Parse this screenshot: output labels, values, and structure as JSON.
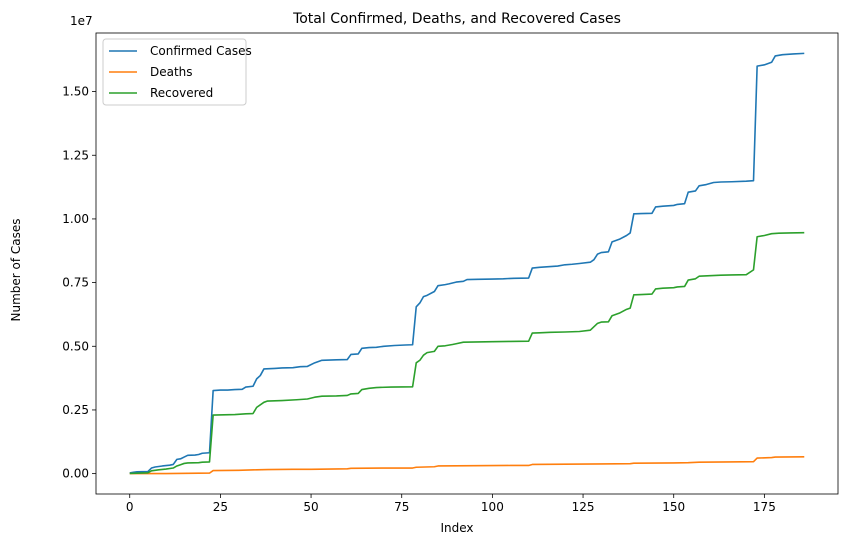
{
  "chart_data": {
    "type": "line",
    "title": "Total Confirmed, Deaths, and Recovered Cases",
    "xlabel": "Index",
    "ylabel": "Number of Cases",
    "y_offset_label": "1e7",
    "xlim": [
      -9.3,
      195.3
    ],
    "ylim": [
      -0.08,
      1.73
    ],
    "y_scale_note": "values in units of 1e7",
    "xticks": [
      0,
      25,
      50,
      75,
      100,
      125,
      150,
      175
    ],
    "yticks": [
      0.0,
      0.25,
      0.5,
      0.75,
      1.0,
      1.25,
      1.5
    ],
    "ytick_labels": [
      "0.00",
      "0.25",
      "0.50",
      "0.75",
      "1.00",
      "1.25",
      "1.50"
    ],
    "legend_position": "upper-left",
    "grid": false,
    "series": [
      {
        "name": "Confirmed Cases",
        "color": "#1f77b4",
        "points": [
          [
            0,
            0.0027
          ],
          [
            1,
            0.005
          ],
          [
            2,
            0.007
          ],
          [
            5,
            0.008
          ],
          [
            6,
            0.022
          ],
          [
            7,
            0.026
          ],
          [
            9,
            0.03
          ],
          [
            11,
            0.033
          ],
          [
            12,
            0.036
          ],
          [
            13,
            0.056
          ],
          [
            14,
            0.058
          ],
          [
            15,
            0.065
          ],
          [
            16,
            0.072
          ],
          [
            18,
            0.073
          ],
          [
            19,
            0.075
          ],
          [
            20,
            0.08
          ],
          [
            22,
            0.082
          ],
          [
            23,
            0.326
          ],
          [
            25,
            0.328
          ],
          [
            27,
            0.328
          ],
          [
            29,
            0.33
          ],
          [
            31,
            0.331
          ],
          [
            32,
            0.34
          ],
          [
            34,
            0.343
          ],
          [
            35,
            0.372
          ],
          [
            36,
            0.385
          ],
          [
            37,
            0.411
          ],
          [
            40,
            0.413
          ],
          [
            42,
            0.415
          ],
          [
            45,
            0.416
          ],
          [
            47,
            0.42
          ],
          [
            49,
            0.421
          ],
          [
            51,
            0.435
          ],
          [
            53,
            0.445
          ],
          [
            57,
            0.447
          ],
          [
            60,
            0.448
          ],
          [
            61,
            0.468
          ],
          [
            63,
            0.47
          ],
          [
            64,
            0.492
          ],
          [
            66,
            0.495
          ],
          [
            68,
            0.496
          ],
          [
            70,
            0.5
          ],
          [
            73,
            0.503
          ],
          [
            76,
            0.505
          ],
          [
            78,
            0.506
          ],
          [
            79,
            0.655
          ],
          [
            80,
            0.67
          ],
          [
            81,
            0.695
          ],
          [
            82,
            0.7
          ],
          [
            84,
            0.715
          ],
          [
            85,
            0.738
          ],
          [
            87,
            0.742
          ],
          [
            88,
            0.745
          ],
          [
            90,
            0.752
          ],
          [
            92,
            0.755
          ],
          [
            93,
            0.762
          ],
          [
            96,
            0.763
          ],
          [
            100,
            0.764
          ],
          [
            103,
            0.765
          ],
          [
            106,
            0.767
          ],
          [
            110,
            0.768
          ],
          [
            111,
            0.807
          ],
          [
            113,
            0.81
          ],
          [
            115,
            0.812
          ],
          [
            118,
            0.815
          ],
          [
            120,
            0.82
          ],
          [
            122,
            0.822
          ],
          [
            124,
            0.825
          ],
          [
            127,
            0.83
          ],
          [
            128,
            0.84
          ],
          [
            129,
            0.862
          ],
          [
            130,
            0.868
          ],
          [
            132,
            0.871
          ],
          [
            133,
            0.91
          ],
          [
            135,
            0.92
          ],
          [
            137,
            0.935
          ],
          [
            138,
            0.945
          ],
          [
            139,
            1.02
          ],
          [
            141,
            1.021
          ],
          [
            144,
            1.022
          ],
          [
            145,
            1.047
          ],
          [
            147,
            1.05
          ],
          [
            150,
            1.053
          ],
          [
            151,
            1.057
          ],
          [
            153,
            1.06
          ],
          [
            154,
            1.105
          ],
          [
            156,
            1.11
          ],
          [
            157,
            1.13
          ],
          [
            159,
            1.135
          ],
          [
            161,
            1.143
          ],
          [
            163,
            1.145
          ],
          [
            166,
            1.146
          ],
          [
            170,
            1.148
          ],
          [
            172,
            1.15
          ],
          [
            173,
            1.6
          ],
          [
            175,
            1.605
          ],
          [
            177,
            1.615
          ],
          [
            178,
            1.64
          ],
          [
            180,
            1.645
          ],
          [
            183,
            1.648
          ],
          [
            186,
            1.65
          ]
        ]
      },
      {
        "name": "Deaths",
        "color": "#ff7f0e",
        "points": [
          [
            0,
            0.0001
          ],
          [
            10,
            0.0003
          ],
          [
            22,
            0.002
          ],
          [
            23,
            0.012
          ],
          [
            30,
            0.013
          ],
          [
            35,
            0.015
          ],
          [
            38,
            0.016
          ],
          [
            45,
            0.017
          ],
          [
            50,
            0.017
          ],
          [
            55,
            0.018
          ],
          [
            60,
            0.019
          ],
          [
            61,
            0.021
          ],
          [
            70,
            0.022
          ],
          [
            78,
            0.022
          ],
          [
            79,
            0.025
          ],
          [
            84,
            0.027
          ],
          [
            85,
            0.03
          ],
          [
            95,
            0.031
          ],
          [
            105,
            0.032
          ],
          [
            110,
            0.032
          ],
          [
            111,
            0.036
          ],
          [
            120,
            0.037
          ],
          [
            130,
            0.038
          ],
          [
            138,
            0.039
          ],
          [
            139,
            0.041
          ],
          [
            150,
            0.042
          ],
          [
            154,
            0.043
          ],
          [
            157,
            0.045
          ],
          [
            165,
            0.046
          ],
          [
            172,
            0.047
          ],
          [
            173,
            0.061
          ],
          [
            177,
            0.063
          ],
          [
            178,
            0.065
          ],
          [
            186,
            0.066
          ]
        ]
      },
      {
        "name": "Recovered",
        "color": "#2ca02c",
        "points": [
          [
            0,
            0.0008
          ],
          [
            5,
            0.003
          ],
          [
            6,
            0.011
          ],
          [
            8,
            0.015
          ],
          [
            10,
            0.018
          ],
          [
            12,
            0.022
          ],
          [
            13,
            0.03
          ],
          [
            14,
            0.035
          ],
          [
            15,
            0.04
          ],
          [
            16,
            0.042
          ],
          [
            19,
            0.043
          ],
          [
            20,
            0.045
          ],
          [
            22,
            0.046
          ],
          [
            23,
            0.23
          ],
          [
            26,
            0.231
          ],
          [
            29,
            0.232
          ],
          [
            32,
            0.235
          ],
          [
            34,
            0.236
          ],
          [
            35,
            0.26
          ],
          [
            37,
            0.28
          ],
          [
            38,
            0.285
          ],
          [
            42,
            0.287
          ],
          [
            46,
            0.29
          ],
          [
            49,
            0.293
          ],
          [
            51,
            0.3
          ],
          [
            53,
            0.304
          ],
          [
            57,
            0.305
          ],
          [
            60,
            0.307
          ],
          [
            61,
            0.313
          ],
          [
            63,
            0.315
          ],
          [
            64,
            0.33
          ],
          [
            66,
            0.335
          ],
          [
            68,
            0.338
          ],
          [
            72,
            0.34
          ],
          [
            78,
            0.341
          ],
          [
            79,
            0.435
          ],
          [
            80,
            0.445
          ],
          [
            81,
            0.465
          ],
          [
            82,
            0.475
          ],
          [
            84,
            0.48
          ],
          [
            85,
            0.5
          ],
          [
            87,
            0.502
          ],
          [
            89,
            0.507
          ],
          [
            90,
            0.51
          ],
          [
            92,
            0.516
          ],
          [
            96,
            0.517
          ],
          [
            100,
            0.518
          ],
          [
            105,
            0.519
          ],
          [
            110,
            0.52
          ],
          [
            111,
            0.552
          ],
          [
            113,
            0.553
          ],
          [
            116,
            0.555
          ],
          [
            120,
            0.556
          ],
          [
            124,
            0.558
          ],
          [
            127,
            0.563
          ],
          [
            129,
            0.59
          ],
          [
            130,
            0.595
          ],
          [
            132,
            0.596
          ],
          [
            133,
            0.62
          ],
          [
            135,
            0.63
          ],
          [
            137,
            0.645
          ],
          [
            138,
            0.65
          ],
          [
            139,
            0.702
          ],
          [
            141,
            0.703
          ],
          [
            144,
            0.705
          ],
          [
            145,
            0.725
          ],
          [
            147,
            0.728
          ],
          [
            150,
            0.73
          ],
          [
            151,
            0.733
          ],
          [
            153,
            0.735
          ],
          [
            154,
            0.76
          ],
          [
            156,
            0.765
          ],
          [
            157,
            0.775
          ],
          [
            160,
            0.777
          ],
          [
            163,
            0.779
          ],
          [
            166,
            0.78
          ],
          [
            170,
            0.781
          ],
          [
            172,
            0.8
          ],
          [
            173,
            0.93
          ],
          [
            175,
            0.935
          ],
          [
            177,
            0.942
          ],
          [
            179,
            0.944
          ],
          [
            182,
            0.945
          ],
          [
            186,
            0.946
          ]
        ]
      }
    ]
  }
}
